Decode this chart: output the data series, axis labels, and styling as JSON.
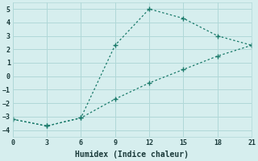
{
  "xlabel": "Humidex (Indice chaleur)",
  "xlim": [
    0,
    21
  ],
  "ylim": [
    -4.5,
    5.5
  ],
  "xticks": [
    0,
    3,
    6,
    9,
    12,
    15,
    18,
    21
  ],
  "yticks": [
    -4,
    -3,
    -2,
    -1,
    0,
    1,
    2,
    3,
    4,
    5
  ],
  "background_color": "#d6eeee",
  "grid_color": "#b0d8d8",
  "line_color": "#1a7a6a",
  "line1_x": [
    0,
    3,
    6,
    9,
    12,
    15,
    18,
    21
  ],
  "line1_y": [
    -3.2,
    -3.7,
    -3.1,
    2.3,
    5.0,
    4.3,
    3.0,
    2.3
  ],
  "line2_x": [
    0,
    3,
    6,
    9,
    12,
    15,
    18,
    21
  ],
  "line2_y": [
    -3.2,
    -3.7,
    -3.1,
    -1.7,
    -0.5,
    0.5,
    1.5,
    2.3
  ],
  "marker": "+",
  "marker_size": 5,
  "linewidth": 0.9
}
